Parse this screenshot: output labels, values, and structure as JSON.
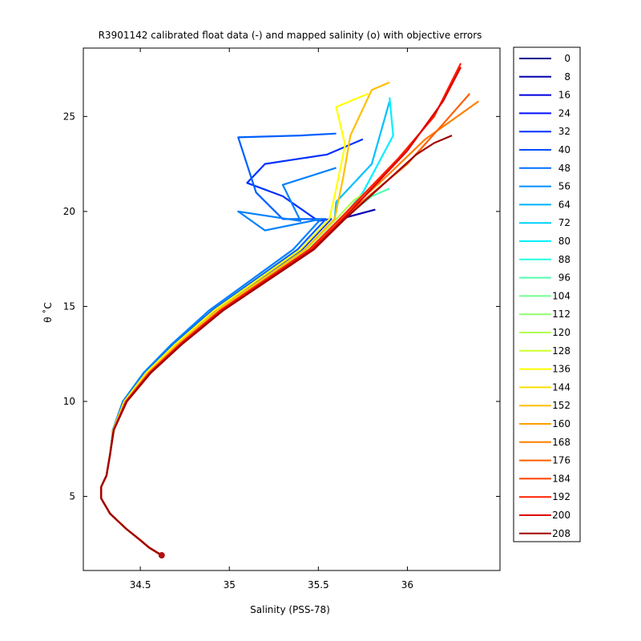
{
  "chart_data": {
    "type": "line",
    "title": "R3901142 calibrated float data (-) and mapped salinity (o) with objective errors",
    "xlabel": "Salinity (PSS-78)",
    "ylabel": "θ ˚C",
    "xlim": [
      34.18,
      36.52
    ],
    "ylim": [
      1.1,
      28.6
    ],
    "xticks": [
      34.5,
      35,
      35.5,
      36
    ],
    "xtick_labels": [
      "34.5",
      "35",
      "35.5",
      "36"
    ],
    "yticks": [
      5,
      10,
      15,
      20,
      25
    ],
    "ytick_labels": [
      "5",
      "10",
      "15",
      "20",
      "25"
    ],
    "grid": false,
    "legend_placement": "outside-right",
    "legend": [
      "0",
      "8",
      "16",
      "24",
      "32",
      "40",
      "48",
      "56",
      "64",
      "72",
      "80",
      "88",
      "96",
      "104",
      "112",
      "120",
      "128",
      "136",
      "144",
      "152",
      "160",
      "168",
      "176",
      "184",
      "192",
      "200",
      "208"
    ],
    "legend_colors": [
      "#00008f",
      "#0000af",
      "#0000df",
      "#0010ff",
      "#0030ff",
      "#0050ff",
      "#0070ff",
      "#0090ff",
      "#00b0ff",
      "#00d0ff",
      "#00f0ff",
      "#20ffdf",
      "#50ffaf",
      "#70ff8f",
      "#90ff6f",
      "#b0ff4f",
      "#d0ff2f",
      "#ffff00",
      "#ffdf00",
      "#ffbf00",
      "#ff9f00",
      "#ff7f00",
      "#ff5f00",
      "#ff3f00",
      "#ff1f00",
      "#df0000",
      "#9f0000"
    ],
    "series_shape": [
      [
        34.62,
        1.9
      ],
      [
        34.55,
        2.3
      ],
      [
        34.5,
        2.7
      ],
      [
        34.42,
        3.3
      ],
      [
        34.33,
        4.1
      ],
      [
        34.28,
        4.9
      ],
      [
        34.28,
        5.5
      ],
      [
        34.31,
        6.1
      ],
      [
        34.33,
        7.2
      ],
      [
        34.35,
        8.5
      ],
      [
        34.42,
        10.0
      ],
      [
        34.55,
        11.5
      ],
      [
        34.72,
        13.0
      ],
      [
        34.95,
        14.8
      ],
      [
        35.2,
        16.4
      ],
      [
        35.45,
        18.0
      ],
      [
        35.62,
        19.6
      ]
    ],
    "curves": [
      {
        "color": "#0000af",
        "offset": 0.0,
        "tail": [
          [
            35.82,
            20.1
          ]
        ]
      },
      {
        "color": "#0030ff",
        "offset": -0.05,
        "tail": [
          [
            35.5,
            19.5
          ],
          [
            35.3,
            20.8
          ],
          [
            35.1,
            21.5
          ],
          [
            35.2,
            22.5
          ],
          [
            35.55,
            23.0
          ],
          [
            35.75,
            23.8
          ]
        ]
      },
      {
        "color": "#0060ff",
        "offset": -0.08,
        "tail": [
          [
            35.3,
            19.6
          ],
          [
            35.15,
            21.0
          ],
          [
            35.05,
            23.9
          ],
          [
            35.4,
            24.0
          ],
          [
            35.6,
            24.1
          ]
        ]
      },
      {
        "color": "#0080ff",
        "offset": -0.11,
        "tail": [
          [
            35.2,
            19.0
          ],
          [
            35.05,
            20.0
          ],
          [
            35.4,
            19.5
          ],
          [
            35.3,
            21.4
          ],
          [
            35.6,
            22.3
          ]
        ]
      },
      {
        "color": "#00c0ff",
        "offset": -0.03,
        "tail": [
          [
            35.6,
            20.5
          ],
          [
            35.8,
            22.5
          ],
          [
            35.9,
            25.8
          ]
        ]
      },
      {
        "color": "#00f0ff",
        "offset": 0.01,
        "tail": [
          [
            35.75,
            21.0
          ],
          [
            35.92,
            24.0
          ],
          [
            35.9,
            26.0
          ]
        ]
      },
      {
        "color": "#50ffaf",
        "offset": 0.02,
        "tail": [
          [
            35.8,
            20.8
          ],
          [
            35.9,
            21.2
          ]
        ]
      },
      {
        "color": "#b0ff4f",
        "offset": -0.02,
        "tail": [
          [
            35.7,
            20.6
          ],
          [
            35.85,
            21.5
          ]
        ]
      },
      {
        "color": "#ffff00",
        "offset": -0.06,
        "tail": [
          [
            35.6,
            21.2
          ],
          [
            35.65,
            23.5
          ],
          [
            35.6,
            25.5
          ],
          [
            35.78,
            26.2
          ]
        ]
      },
      {
        "color": "#ffbf00",
        "offset": -0.03,
        "tail": [
          [
            35.64,
            21.8
          ],
          [
            35.68,
            24.0
          ],
          [
            35.8,
            26.4
          ],
          [
            35.9,
            26.8
          ]
        ]
      },
      {
        "color": "#ff7f00",
        "offset": 0.0,
        "tail": [
          [
            35.9,
            22.0
          ],
          [
            36.1,
            23.8
          ],
          [
            36.4,
            25.8
          ]
        ]
      },
      {
        "color": "#ff5f00",
        "offset": 0.01,
        "tail": [
          [
            36.0,
            22.5
          ],
          [
            36.2,
            24.6
          ],
          [
            36.35,
            26.2
          ]
        ]
      },
      {
        "color": "#ff1f00",
        "offset": 0.0,
        "tail": [
          [
            35.95,
            22.8
          ],
          [
            36.15,
            25.0
          ],
          [
            36.3,
            27.8
          ]
        ]
      },
      {
        "color": "#df0000",
        "offset": 0.02,
        "tail": [
          [
            36.0,
            23.2
          ],
          [
            36.2,
            25.8
          ],
          [
            36.3,
            27.6
          ]
        ]
      },
      {
        "color": "#9f0000",
        "offset": 0.03,
        "tail": [
          [
            36.05,
            23.0
          ],
          [
            36.15,
            23.6
          ],
          [
            36.25,
            24.0
          ]
        ]
      }
    ]
  }
}
